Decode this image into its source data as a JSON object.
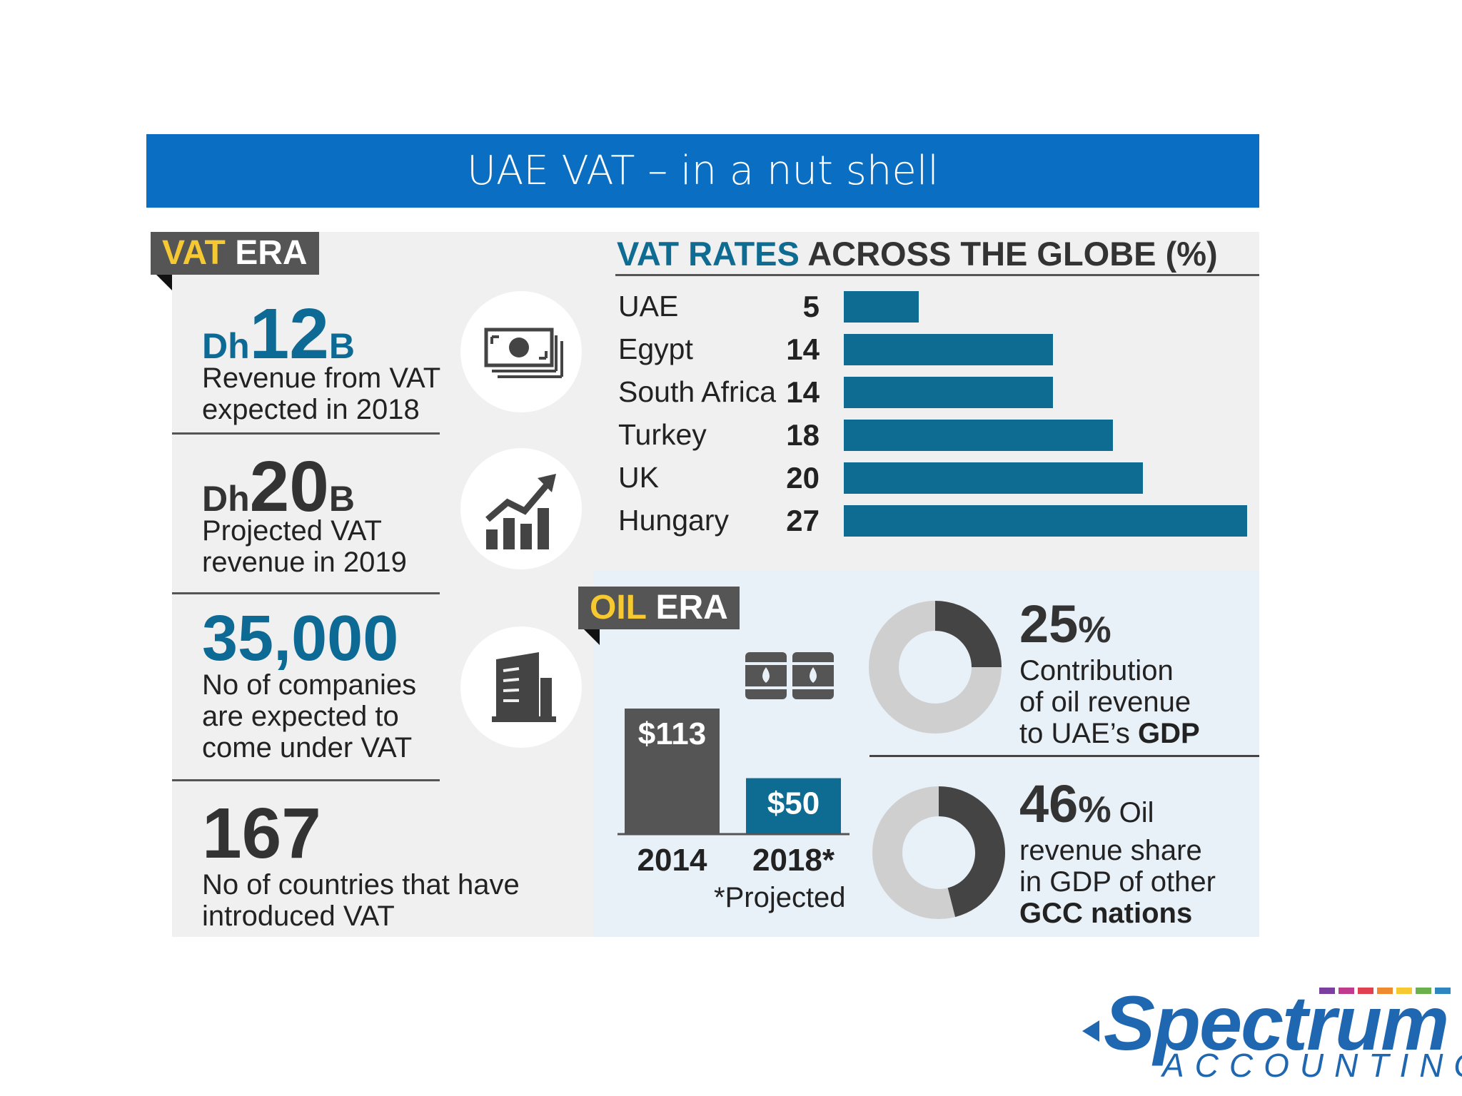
{
  "title": "UAE VAT – in a nut shell",
  "vat_era": {
    "tag_a": "VAT",
    "tag_b": "ERA",
    "stats": [
      {
        "prefix": "Dh",
        "value": "12",
        "suffix": "B",
        "line1": "Revenue from VAT",
        "line2": "expected in 2018",
        "icon": "money-icon"
      },
      {
        "prefix": "Dh",
        "value": "20",
        "suffix": "B",
        "line1": "Projected VAT",
        "line2": "revenue in 2019",
        "icon": "growth-chart-icon"
      },
      {
        "value": "35,000",
        "line1": "No of companies",
        "line2": "are expected to",
        "line3": "come under VAT",
        "icon": "building-icon"
      },
      {
        "value": "167",
        "line1": "No of countries  that have",
        "line2": "introduced VAT"
      }
    ]
  },
  "vat_rates": {
    "heading_a": "VAT RATES",
    "heading_b": "ACROSS THE GLOBE (%)"
  },
  "chart_data": [
    {
      "type": "bar",
      "orientation": "horizontal",
      "title": "VAT RATES ACROSS THE GLOBE (%)",
      "categories": [
        "UAE",
        "Egypt",
        "South Africa",
        "Turkey",
        "UK",
        "Hungary"
      ],
      "values": [
        5,
        14,
        14,
        18,
        20,
        27
      ],
      "color": "#0e6c93"
    },
    {
      "type": "bar",
      "categories": [
        "2014",
        "2018*"
      ],
      "values": [
        113,
        50
      ],
      "labels": [
        "$113",
        "$50"
      ],
      "colors": [
        "#555555",
        "#0e6c93"
      ]
    },
    {
      "type": "pie",
      "style": "donut",
      "value": 25,
      "label": "25%",
      "text": [
        "Contribution",
        "of oil revenue",
        "to UAE's",
        "GDP"
      ]
    },
    {
      "type": "pie",
      "style": "donut",
      "value": 46,
      "label": "46%",
      "text": [
        "Oil",
        "revenue share",
        "in GDP of other",
        "GCC nations"
      ]
    }
  ],
  "oil_era": {
    "tag_a": "OIL",
    "tag_b": "ERA",
    "footnote": "*Projected",
    "pct1": "25",
    "pct1_sign": "%",
    "pct1_l1": "Contribution",
    "pct1_l2": "of oil revenue",
    "pct1_l3": "to UAE’s ",
    "pct1_l3b": "GDP",
    "pct2": "46",
    "pct2_sign": "%",
    "pct2_word": " Oil",
    "pct2_l1": "revenue share",
    "pct2_l2": "in GDP of other",
    "pct2_l3": "GCC nations"
  },
  "logo": {
    "name": "Spectrum",
    "sub": "ACCOUNTING",
    "colors": [
      "#7b3fa0",
      "#c03a8e",
      "#e04050",
      "#f08a30",
      "#f6c832",
      "#6ab04c",
      "#2e86c1"
    ]
  }
}
